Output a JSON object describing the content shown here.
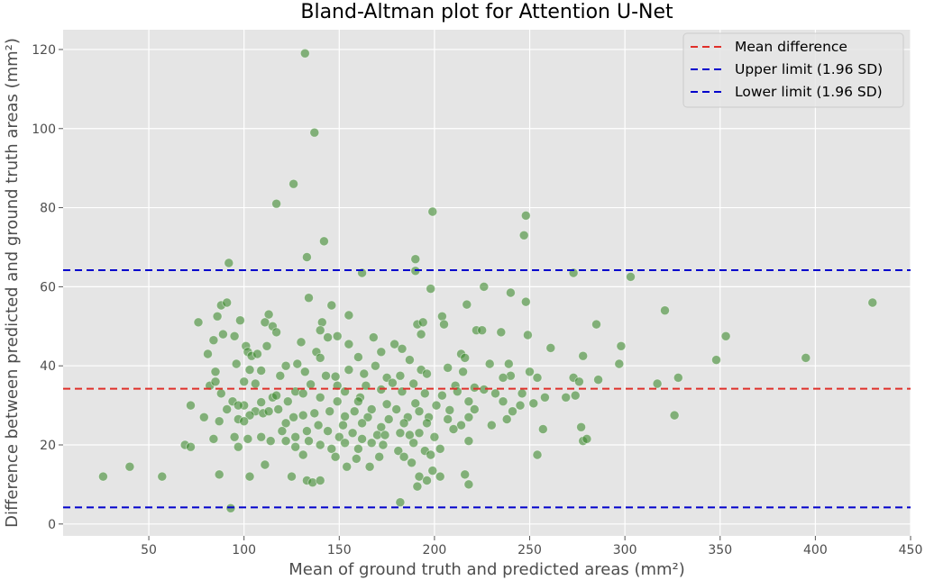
{
  "chart_data": {
    "type": "scatter",
    "title": "Bland-Altman plot for Attention U-Net",
    "xlabel": "Mean of ground truth and predicted areas (mm²)",
    "ylabel": "Difference between predicted and ground truth areas (mm²)",
    "xlim": [
      5,
      450
    ],
    "ylim": [
      -3,
      125
    ],
    "xticks": [
      50,
      100,
      150,
      200,
      250,
      300,
      350,
      400,
      450
    ],
    "yticks": [
      0,
      20,
      40,
      60,
      80,
      100,
      120
    ],
    "grid": true,
    "legend": {
      "position": "top-right"
    },
    "point_color": "#3d8a2e",
    "reference_lines": [
      {
        "name": "Mean difference",
        "y": 34.2,
        "color": "#e0302a"
      },
      {
        "name": "Upper limit (1.96 SD)",
        "y": 64.2,
        "color": "#0000cc"
      },
      {
        "name": "Lower limit (1.96 SD)",
        "y": 4.2,
        "color": "#0000cc"
      }
    ],
    "points": [
      [
        132,
        119
      ],
      [
        137,
        99
      ],
      [
        126,
        86
      ],
      [
        117,
        81
      ],
      [
        142,
        71.5
      ],
      [
        133,
        67.5
      ],
      [
        199,
        79
      ],
      [
        248,
        78
      ],
      [
        247,
        73
      ],
      [
        190,
        67
      ],
      [
        92,
        66
      ],
      [
        190,
        64
      ],
      [
        162,
        63.5
      ],
      [
        273,
        63.5
      ],
      [
        303,
        62.5
      ],
      [
        198,
        59.5
      ],
      [
        226,
        60
      ],
      [
        240,
        58.5
      ],
      [
        134,
        57.2
      ],
      [
        88,
        55.3
      ],
      [
        91,
        56
      ],
      [
        248,
        56.2
      ],
      [
        430,
        56
      ],
      [
        146,
        55.3
      ],
      [
        217,
        55.5
      ],
      [
        321,
        54
      ],
      [
        86,
        52.5
      ],
      [
        113,
        53
      ],
      [
        155,
        52.8
      ],
      [
        204,
        52.5
      ],
      [
        98,
        51.5
      ],
      [
        76,
        51
      ],
      [
        111,
        51
      ],
      [
        141,
        51
      ],
      [
        191,
        50.5
      ],
      [
        194,
        51
      ],
      [
        115,
        50
      ],
      [
        117,
        48.5
      ],
      [
        205,
        50.5
      ],
      [
        140,
        49
      ],
      [
        144,
        47.2
      ],
      [
        222,
        49
      ],
      [
        225,
        49
      ],
      [
        235,
        48.5
      ],
      [
        249,
        47.8
      ],
      [
        261,
        44.5
      ],
      [
        285,
        50.5
      ],
      [
        353,
        47.5
      ],
      [
        89,
        48
      ],
      [
        95,
        47.5
      ],
      [
        84,
        46.5
      ],
      [
        149,
        47.5
      ],
      [
        168,
        47.2
      ],
      [
        193,
        48
      ],
      [
        155,
        45.5
      ],
      [
        179,
        45.5
      ],
      [
        101,
        45
      ],
      [
        112,
        45
      ],
      [
        130,
        46
      ],
      [
        172,
        43.5
      ],
      [
        183,
        44.3
      ],
      [
        214,
        43
      ],
      [
        216,
        42
      ],
      [
        102,
        43.5
      ],
      [
        138,
        43.5
      ],
      [
        278,
        42.5
      ],
      [
        298,
        45
      ],
      [
        317,
        35.5
      ],
      [
        328,
        37
      ],
      [
        348,
        41.5
      ],
      [
        395,
        42
      ],
      [
        104,
        42.5
      ],
      [
        81,
        43
      ],
      [
        107,
        43
      ],
      [
        140,
        42
      ],
      [
        160,
        42.2
      ],
      [
        187,
        41.5
      ],
      [
        229,
        40.5
      ],
      [
        239,
        40.5
      ],
      [
        250,
        38.5
      ],
      [
        96,
        40.5
      ],
      [
        122,
        40
      ],
      [
        128,
        40.5
      ],
      [
        155,
        39
      ],
      [
        207,
        39.5
      ],
      [
        169,
        40
      ],
      [
        193,
        39
      ],
      [
        273,
        37
      ],
      [
        297,
        40.5
      ],
      [
        85,
        38.5
      ],
      [
        103,
        39
      ],
      [
        109,
        38.8
      ],
      [
        143,
        37.5
      ],
      [
        148,
        37.3
      ],
      [
        163,
        38
      ],
      [
        182,
        37.5
      ],
      [
        215,
        38.5
      ],
      [
        240,
        37.5
      ],
      [
        119,
        37.5
      ],
      [
        132,
        38.5
      ],
      [
        175,
        37
      ],
      [
        196,
        38
      ],
      [
        236,
        37
      ],
      [
        276,
        36
      ],
      [
        286,
        36.5
      ],
      [
        254,
        37
      ],
      [
        82,
        35
      ],
      [
        85,
        36
      ],
      [
        100,
        36
      ],
      [
        106,
        35.5
      ],
      [
        127,
        33.5
      ],
      [
        135,
        35.3
      ],
      [
        149,
        35
      ],
      [
        164,
        35
      ],
      [
        172,
        34
      ],
      [
        178,
        35.7
      ],
      [
        189,
        35.5
      ],
      [
        211,
        35
      ],
      [
        221,
        34.5
      ],
      [
        232,
        33
      ],
      [
        100,
        30
      ],
      [
        115,
        32
      ],
      [
        117,
        32.5
      ],
      [
        131,
        33
      ],
      [
        140,
        32
      ],
      [
        153,
        33.5
      ],
      [
        161,
        32
      ],
      [
        183,
        33.5
      ],
      [
        195,
        33
      ],
      [
        204,
        32.5
      ],
      [
        212,
        33.5
      ],
      [
        226,
        34
      ],
      [
        246,
        33
      ],
      [
        258,
        32
      ],
      [
        269,
        32
      ],
      [
        274,
        32.5
      ],
      [
        72,
        30
      ],
      [
        88,
        33
      ],
      [
        94,
        31
      ],
      [
        109,
        30.8
      ],
      [
        123,
        31
      ],
      [
        149,
        31
      ],
      [
        160,
        31
      ],
      [
        175,
        30.3
      ],
      [
        190,
        30.5
      ],
      [
        201,
        30
      ],
      [
        218,
        31
      ],
      [
        236,
        31
      ],
      [
        245,
        30
      ],
      [
        252,
        30.5
      ],
      [
        91,
        29
      ],
      [
        97,
        30
      ],
      [
        106,
        28.5
      ],
      [
        110,
        28
      ],
      [
        118,
        29
      ],
      [
        137,
        28
      ],
      [
        145,
        28.5
      ],
      [
        158,
        28.5
      ],
      [
        167,
        29
      ],
      [
        180,
        29
      ],
      [
        192,
        28.5
      ],
      [
        208,
        28.8
      ],
      [
        221,
        29
      ],
      [
        241,
        28.5
      ],
      [
        79,
        27
      ],
      [
        97,
        26.5
      ],
      [
        103,
        27.5
      ],
      [
        113,
        28.5
      ],
      [
        126,
        27
      ],
      [
        131,
        27.5
      ],
      [
        153,
        27.2
      ],
      [
        165,
        27
      ],
      [
        176,
        26.5
      ],
      [
        186,
        27
      ],
      [
        197,
        27
      ],
      [
        207,
        26.5
      ],
      [
        218,
        27
      ],
      [
        238,
        26.5
      ],
      [
        326,
        27.5
      ],
      [
        87,
        26
      ],
      [
        100,
        26
      ],
      [
        122,
        25.5
      ],
      [
        139,
        25
      ],
      [
        152,
        25
      ],
      [
        162,
        25.5
      ],
      [
        172,
        24.5
      ],
      [
        184,
        25.5
      ],
      [
        196,
        25.5
      ],
      [
        214,
        25
      ],
      [
        230,
        25
      ],
      [
        257,
        24
      ],
      [
        277,
        24.5
      ],
      [
        120,
        23.5
      ],
      [
        133,
        23.5
      ],
      [
        144,
        23.5
      ],
      [
        157,
        23
      ],
      [
        170,
        22.5
      ],
      [
        182,
        23
      ],
      [
        192,
        23
      ],
      [
        210,
        24
      ],
      [
        95,
        22
      ],
      [
        109,
        22
      ],
      [
        127,
        22
      ],
      [
        134,
        21
      ],
      [
        150,
        22
      ],
      [
        162,
        21.5
      ],
      [
        174,
        22.5
      ],
      [
        187,
        22.5
      ],
      [
        200,
        22
      ],
      [
        84,
        21.5
      ],
      [
        102,
        21.5
      ],
      [
        114,
        21
      ],
      [
        122,
        21
      ],
      [
        140,
        20
      ],
      [
        153,
        20.5
      ],
      [
        167,
        20.5
      ],
      [
        189,
        20.5
      ],
      [
        218,
        21
      ],
      [
        278,
        21
      ],
      [
        280,
        21.5
      ],
      [
        69,
        20
      ],
      [
        72,
        19.5
      ],
      [
        97,
        19.5
      ],
      [
        127,
        19.5
      ],
      [
        146,
        19
      ],
      [
        160,
        19
      ],
      [
        173,
        20
      ],
      [
        181,
        18.5
      ],
      [
        195,
        18.5
      ],
      [
        203,
        19
      ],
      [
        254,
        17.5
      ],
      [
        131,
        17.5
      ],
      [
        148,
        17
      ],
      [
        159,
        16.5
      ],
      [
        171,
        17
      ],
      [
        184,
        17
      ],
      [
        198,
        17.5
      ],
      [
        111,
        15
      ],
      [
        154,
        14.5
      ],
      [
        166,
        14.5
      ],
      [
        188,
        15.5
      ],
      [
        199,
        13.5
      ],
      [
        26,
        12
      ],
      [
        40,
        14.5
      ],
      [
        57,
        12
      ],
      [
        87,
        12.5
      ],
      [
        103,
        12
      ],
      [
        125,
        12
      ],
      [
        133,
        11
      ],
      [
        136,
        10.5
      ],
      [
        140,
        11
      ],
      [
        192,
        12
      ],
      [
        203,
        12
      ],
      [
        216,
        12.5
      ],
      [
        218,
        10
      ],
      [
        196,
        11
      ],
      [
        191,
        9.5
      ],
      [
        182,
        5.5
      ],
      [
        93,
        4
      ]
    ]
  }
}
